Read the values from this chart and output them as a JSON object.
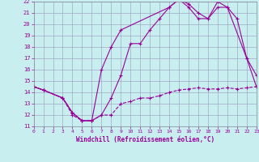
{
  "xlabel": "Windchill (Refroidissement éolien,°C)",
  "bg_color": "#c8eef0",
  "grid_color": "#9999bb",
  "line_color": "#990099",
  "xlim": [
    0,
    23
  ],
  "ylim": [
    11,
    22
  ],
  "xticks": [
    0,
    1,
    2,
    3,
    4,
    5,
    6,
    7,
    8,
    9,
    10,
    11,
    12,
    13,
    14,
    15,
    16,
    17,
    18,
    19,
    20,
    21,
    22,
    23
  ],
  "yticks": [
    11,
    12,
    13,
    14,
    15,
    16,
    17,
    18,
    19,
    20,
    21,
    22
  ],
  "line1_x": [
    0,
    1,
    3,
    4,
    5,
    6,
    7,
    8,
    9,
    14,
    15,
    16,
    17,
    18,
    19,
    20,
    22,
    23
  ],
  "line1_y": [
    14.5,
    14.2,
    13.5,
    12.2,
    11.5,
    11.5,
    16.0,
    18.0,
    19.5,
    21.5,
    22.2,
    21.8,
    21.0,
    20.5,
    22.0,
    21.5,
    17.0,
    15.5
  ],
  "line2_x": [
    0,
    1,
    3,
    4,
    5,
    6,
    7,
    8,
    9,
    10,
    11,
    12,
    13,
    14,
    15,
    16,
    17,
    18,
    19,
    20,
    21,
    22,
    23
  ],
  "line2_y": [
    14.5,
    14.2,
    13.5,
    12.2,
    11.5,
    11.5,
    12.0,
    13.5,
    15.5,
    18.3,
    18.3,
    19.5,
    20.5,
    21.5,
    22.2,
    21.5,
    20.5,
    20.5,
    21.5,
    21.5,
    20.5,
    17.0,
    14.5
  ],
  "line3_x": [
    0,
    1,
    3,
    4,
    5,
    6,
    7,
    8,
    9,
    10,
    11,
    12,
    13,
    14,
    15,
    16,
    17,
    18,
    19,
    20,
    21,
    22,
    23
  ],
  "line3_y": [
    14.5,
    14.2,
    13.5,
    12.0,
    11.5,
    11.5,
    12.0,
    12.0,
    13.0,
    13.2,
    13.5,
    13.5,
    13.7,
    14.0,
    14.2,
    14.3,
    14.4,
    14.3,
    14.3,
    14.4,
    14.3,
    14.4,
    14.5
  ]
}
